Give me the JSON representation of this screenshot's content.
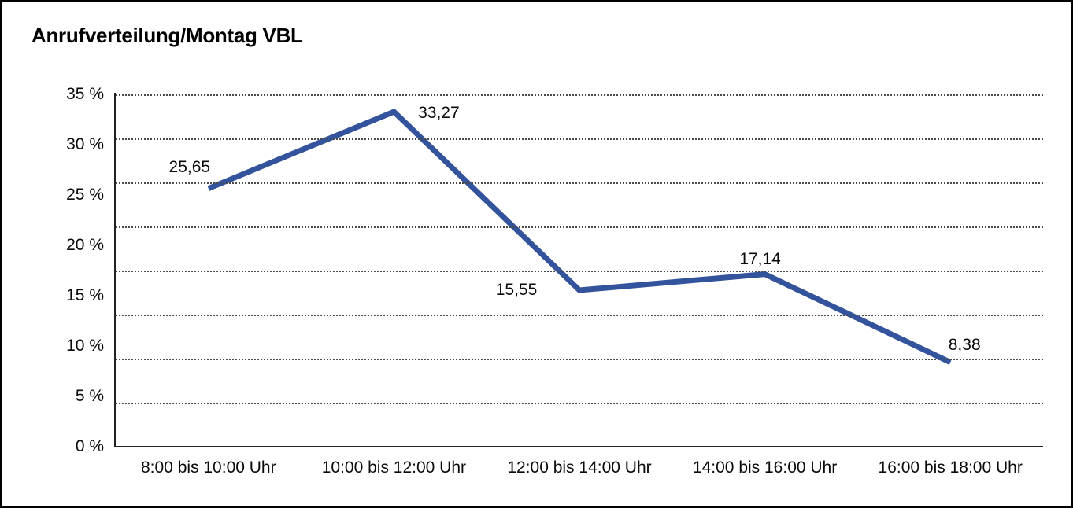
{
  "title": "Anrufverteilung/Montag VBL",
  "chart_data": {
    "type": "line",
    "title": "Anrufverteilung/Montag VBL",
    "categories": [
      "8:00 bis 10:00 Uhr",
      "10:00 bis 12:00 Uhr",
      "12:00 bis 14:00 Uhr",
      "14:00 bis 16:00 Uhr",
      "16:00 bis 18:00 Uhr"
    ],
    "values": [
      25.65,
      33.27,
      15.55,
      17.14,
      8.38
    ],
    "point_labels": [
      "25,65",
      "33,27",
      "15,55",
      "17,14",
      "8,38"
    ],
    "y_ticks": [
      "35 %",
      "30 %",
      "25 %",
      "20 %",
      "15 %",
      "10 %",
      "5 %",
      "0 %"
    ],
    "ylim": [
      0,
      35
    ],
    "xlabel": "",
    "ylabel": "",
    "legend": "none",
    "grid": "horizontal-dotted",
    "gridline_count": 8,
    "line_color": "#33539C",
    "axis_color": "#222222",
    "text_color": "#0a0a0a",
    "background": "#FFFFFF"
  }
}
